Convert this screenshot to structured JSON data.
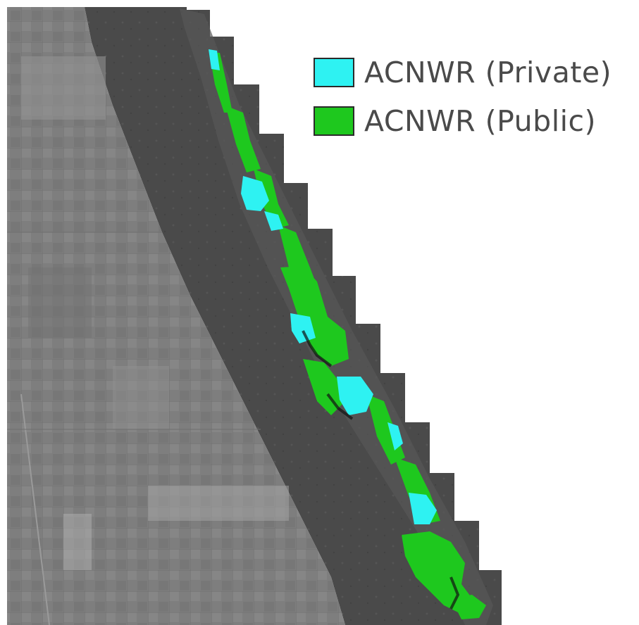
{
  "legend": {
    "items": [
      {
        "label": "ACNWR (Private)",
        "color": "#2ef2f2"
      },
      {
        "label": "ACNWR (Public)",
        "color": "#1ec81e"
      }
    ]
  },
  "colors": {
    "land_light": "#8a8a8a",
    "land_dark": "#6a6a6a",
    "water": "#4b4b4b",
    "private": "#2ef2f2",
    "public": "#1ec81e",
    "background": "#ffffff"
  }
}
